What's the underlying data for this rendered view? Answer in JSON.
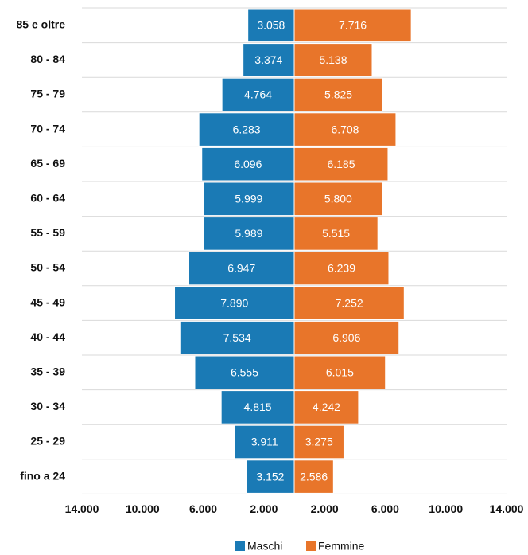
{
  "chart_data": {
    "type": "bar",
    "orientation": "horizontal",
    "layout": "pyramid",
    "categories": [
      "85 e oltre",
      "80 - 84",
      "75 - 79",
      "70 - 74",
      "65 - 69",
      "60 - 64",
      "55 - 59",
      "50 - 54",
      "45 - 49",
      "40 - 44",
      "35 - 39",
      "30 - 34",
      "25 - 29",
      "fino a 24"
    ],
    "series": [
      {
        "name": "Maschi",
        "color": "#1a7ab5",
        "side": "left",
        "values": [
          3058,
          3374,
          4764,
          6283,
          6096,
          5999,
          5989,
          6947,
          7890,
          7534,
          6555,
          4815,
          3911,
          3152
        ],
        "value_labels": [
          "3.058",
          "3.374",
          "4.764",
          "6.283",
          "6.096",
          "5.999",
          "5.989",
          "6.947",
          "7.890",
          "7.534",
          "6.555",
          "4.815",
          "3.911",
          "3.152"
        ]
      },
      {
        "name": "Femmine",
        "color": "#e8752a",
        "side": "right",
        "values": [
          7716,
          5138,
          5825,
          6708,
          6185,
          5800,
          5515,
          6239,
          7252,
          6906,
          6015,
          4242,
          3275,
          2586
        ],
        "value_labels": [
          "7.716",
          "5.138",
          "5.825",
          "6.708",
          "6.185",
          "5.800",
          "5.515",
          "6.239",
          "7.252",
          "6.906",
          "6.015",
          "4.242",
          "3.275",
          "2.586"
        ]
      }
    ],
    "xlim": [
      -14000,
      14000
    ],
    "xticks": [
      {
        "value": -14000,
        "label": "14.000"
      },
      {
        "value": -10000,
        "label": "10.000"
      },
      {
        "value": -6000,
        "label": "6.000"
      },
      {
        "value": -2000,
        "label": "2.000"
      },
      {
        "value": 2000,
        "label": "2.000"
      },
      {
        "value": 6000,
        "label": "6.000"
      },
      {
        "value": 10000,
        "label": "10.000"
      },
      {
        "value": 14000,
        "label": "14.000"
      }
    ],
    "legend": "bottom"
  }
}
